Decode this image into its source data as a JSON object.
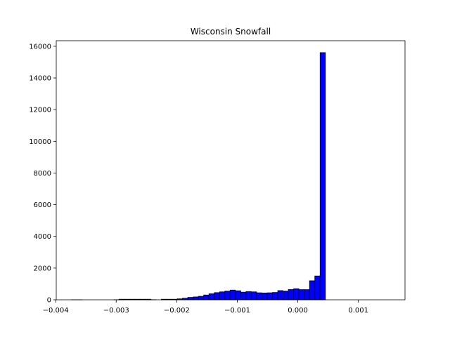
{
  "chart_data": {
    "type": "bar",
    "title": "Wisconsin Snowfall",
    "xlabel": "",
    "ylabel": "",
    "xlim": [
      -0.00399,
      0.00177
    ],
    "ylim": [
      0,
      16350
    ],
    "xticks": [
      -0.004,
      -0.003,
      -0.002,
      -0.001,
      0.0,
      0.001
    ],
    "xtick_labels": [
      "−0.004",
      "−0.003",
      "−0.002",
      "−0.001",
      "0.000",
      "0.001"
    ],
    "yticks": [
      0,
      2000,
      4000,
      6000,
      8000,
      10000,
      12000,
      14000,
      16000
    ],
    "ytick_labels": [
      "0",
      "2000",
      "4000",
      "6000",
      "8000",
      "10000",
      "12000",
      "14000",
      "16000"
    ],
    "bar_color": "#0000ff",
    "edge_color": "#000000",
    "grid": false,
    "bins": {
      "start": -0.00374,
      "width": 8.74e-05,
      "counts": [
        3,
        3,
        0,
        0,
        0,
        0,
        0,
        0,
        3,
        35,
        35,
        35,
        35,
        35,
        35,
        6,
        0,
        35,
        35,
        35,
        60,
        100,
        150,
        180,
        220,
        300,
        380,
        450,
        500,
        550,
        610,
        570,
        480,
        520,
        500,
        440,
        430,
        440,
        460,
        580,
        550,
        650,
        700,
        640,
        640,
        1200,
        1500,
        15600,
        0,
        0,
        0,
        0,
        0,
        0,
        0,
        0,
        0,
        0,
        0,
        0,
        0,
        0
      ]
    }
  }
}
